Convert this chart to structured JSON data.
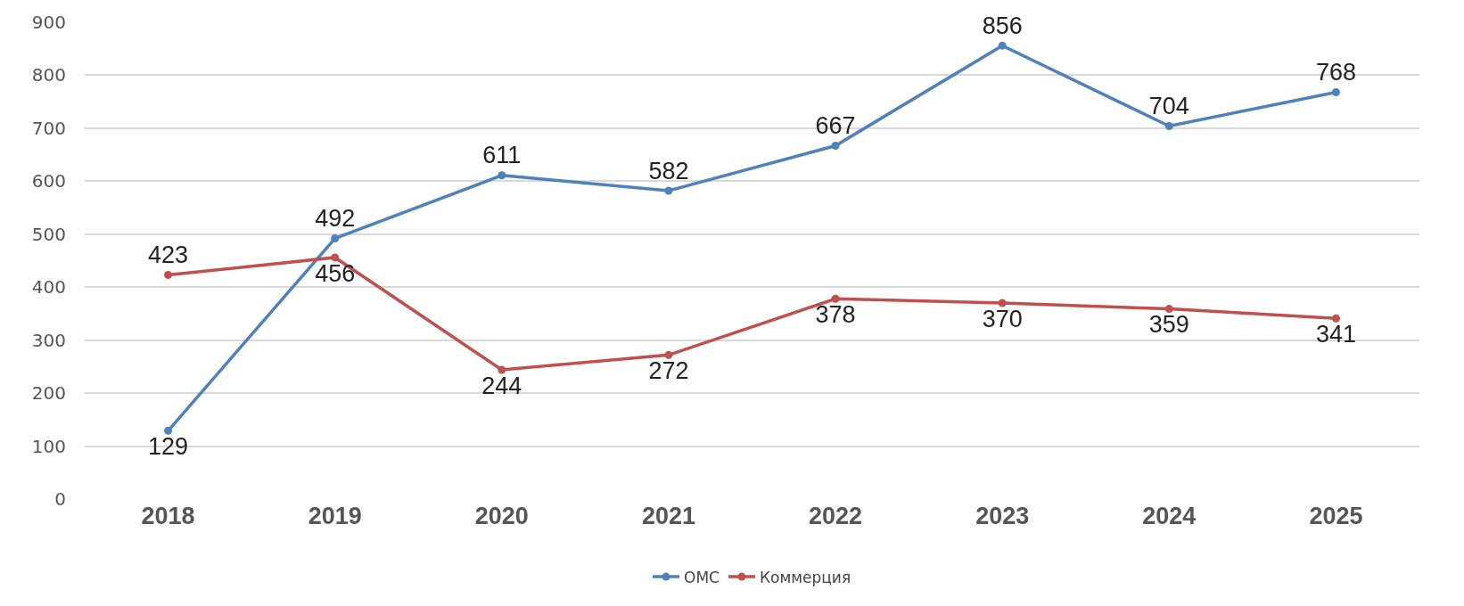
{
  "chart_data": {
    "type": "line",
    "categories": [
      "2018",
      "2019",
      "2020",
      "2021",
      "2022",
      "2023",
      "2024",
      "2025"
    ],
    "series": [
      {
        "name": "ОМС",
        "color": "#4f81bd",
        "values": [
          129,
          492,
          611,
          582,
          667,
          856,
          704,
          768
        ]
      },
      {
        "name": "Коммерция",
        "color": "#c0504d",
        "values": [
          423,
          456,
          244,
          272,
          378,
          370,
          359,
          341
        ]
      }
    ],
    "ylim": [
      0,
      900
    ],
    "yticks": [
      0,
      100,
      200,
      300,
      400,
      500,
      600,
      700,
      800,
      900
    ],
    "grid": "y",
    "legend": "bottom",
    "marker": "circle",
    "line_style": "solid",
    "data_labels": true
  }
}
